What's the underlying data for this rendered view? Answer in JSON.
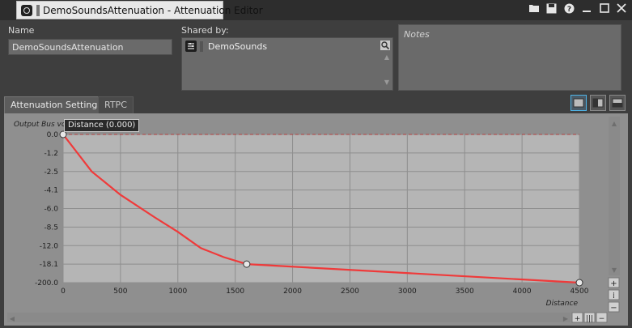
{
  "window": {
    "title": "DemoSoundsAttenuation - Attenuation Editor"
  },
  "toolbar": {
    "open_icon": "folder-icon",
    "save_icon": "save-icon",
    "help_icon": "help-icon",
    "minimize_icon": "minimize-icon",
    "maximize_icon": "maximize-icon",
    "close_icon": "close-icon"
  },
  "form": {
    "name_label": "Name",
    "name_value": "DemoSoundsAttenuation",
    "shared_label": "Shared by:",
    "shared_items": [
      "DemoSounds"
    ],
    "notes_placeholder": "Notes"
  },
  "tabs": [
    "Attenuation Settings",
    "RTPC"
  ],
  "active_tab": "Attenuation Settings",
  "graph": {
    "tooltip": "Distance (0.000)",
    "ylabel": "Output Bus vo",
    "xlabel": "Distance",
    "accent": "#ef3a3a"
  },
  "chart_data": {
    "type": "line",
    "x_ticks": [
      0,
      500,
      1000,
      1500,
      2000,
      2500,
      3000,
      3500,
      4000,
      4500
    ],
    "y_ticks": [
      0.0,
      -1.2,
      -2.5,
      -4.1,
      -6.0,
      -8.5,
      -12.0,
      -18.1,
      -200.0
    ],
    "y_tick_labels": [
      "0.0",
      "-1.2",
      "-2.5",
      "-4.1",
      "-6.0",
      "-8.5",
      "-12.0",
      "-18.1",
      "-200.0"
    ],
    "series": [
      {
        "values_x": [
          0,
          250,
          500,
          800,
          1000,
          1200,
          1400,
          1600,
          4500
        ],
        "values_y": [
          0.0,
          -2.5,
          -4.6,
          -7.2,
          -9.4,
          -12.8,
          -15.8,
          -18.1,
          -200.0
        ]
      }
    ],
    "control_points": [
      {
        "x": 0,
        "y": 0.0
      },
      {
        "x": 1600,
        "y": -18.1
      },
      {
        "x": 4500,
        "y": -200.0
      }
    ],
    "xlim": [
      0,
      4500
    ],
    "grid": true,
    "reference_line_y": 0.0
  }
}
